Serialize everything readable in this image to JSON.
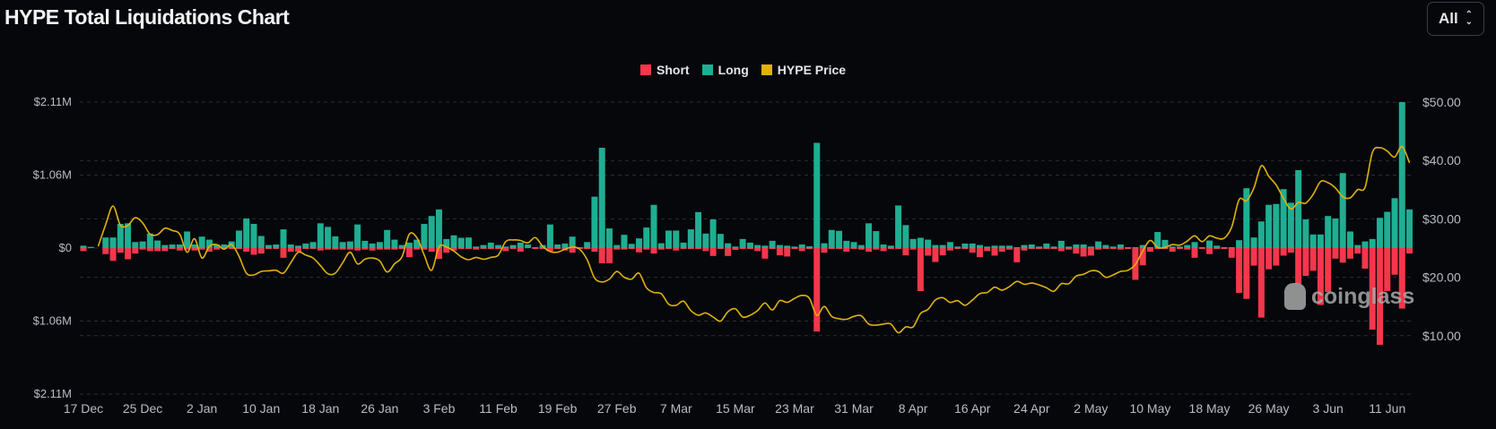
{
  "title": "HYPE Total Liquidations Chart",
  "range_select": {
    "value": "All"
  },
  "watermark": "coinglass",
  "colors": {
    "short": "#f5364b",
    "long": "#1fae92",
    "price": "#e0b20c",
    "background": "#05070b"
  },
  "chart_data": {
    "type": "bar",
    "title": "HYPE Total Liquidations Chart",
    "legend": {
      "placement": "top-center",
      "entries": [
        "Short",
        "Long",
        "HYPE Price"
      ]
    },
    "grid": true,
    "y_left": {
      "ticks": [
        "$2.11M",
        "$1.06M",
        "$0",
        "$1.06M",
        "$2.11M"
      ],
      "range_musd": [
        -2.11,
        2.11
      ]
    },
    "y_right": {
      "ticks": [
        "$50.00",
        "$40.00",
        "$30.00",
        "$20.00",
        "$10.00"
      ],
      "range": [
        0,
        50
      ]
    },
    "x_ticks": [
      "17 Dec",
      "25 Dec",
      "2 Jan",
      "10 Jan",
      "18 Jan",
      "26 Jan",
      "3 Feb",
      "11 Feb",
      "19 Feb",
      "27 Feb",
      "7 Mar",
      "15 Mar",
      "23 Mar",
      "31 Mar",
      "8 Apr",
      "16 Apr",
      "24 Apr",
      "2 May",
      "10 May",
      "18 May",
      "26 May",
      "3 Jun",
      "11 Jun"
    ],
    "categories": [
      "17 Dec",
      "18 Dec",
      "19 Dec",
      "20 Dec",
      "21 Dec",
      "22 Dec",
      "23 Dec",
      "24 Dec",
      "25 Dec",
      "26 Dec",
      "27 Dec",
      "28 Dec",
      "29 Dec",
      "30 Dec",
      "31 Dec",
      "1 Jan",
      "2 Jan",
      "3 Jan",
      "4 Jan",
      "5 Jan",
      "6 Jan",
      "7 Jan",
      "8 Jan",
      "9 Jan",
      "10 Jan",
      "11 Jan",
      "12 Jan",
      "13 Jan",
      "14 Jan",
      "15 Jan",
      "16 Jan",
      "17 Jan",
      "18 Jan",
      "19 Jan",
      "20 Jan",
      "21 Jan",
      "22 Jan",
      "23 Jan",
      "24 Jan",
      "25 Jan",
      "26 Jan",
      "27 Jan",
      "28 Jan",
      "29 Jan",
      "30 Jan",
      "31 Jan",
      "1 Feb",
      "2 Feb",
      "3 Feb",
      "4 Feb",
      "5 Feb",
      "6 Feb",
      "7 Feb",
      "8 Feb",
      "9 Feb",
      "10 Feb",
      "11 Feb",
      "12 Feb",
      "13 Feb",
      "14 Feb",
      "15 Feb",
      "16 Feb",
      "17 Feb",
      "18 Feb",
      "19 Feb",
      "20 Feb",
      "21 Feb",
      "22 Feb",
      "23 Feb",
      "24 Feb",
      "25 Feb",
      "26 Feb",
      "27 Feb",
      "28 Feb",
      "1 Mar",
      "2 Mar",
      "3 Mar",
      "4 Mar",
      "5 Mar",
      "6 Mar",
      "7 Mar",
      "8 Mar",
      "9 Mar",
      "10 Mar",
      "11 Mar",
      "12 Mar",
      "13 Mar",
      "14 Mar",
      "15 Mar",
      "16 Mar",
      "17 Mar",
      "18 Mar",
      "19 Mar",
      "20 Mar",
      "21 Mar",
      "22 Mar",
      "23 Mar",
      "24 Mar",
      "25 Mar",
      "26 Mar",
      "27 Mar",
      "28 Mar",
      "29 Mar",
      "30 Mar",
      "31 Mar",
      "1 Apr",
      "2 Apr",
      "3 Apr",
      "4 Apr",
      "5 Apr",
      "6 Apr",
      "7 Apr",
      "8 Apr",
      "9 Apr",
      "10 Apr",
      "11 Apr",
      "12 Apr",
      "13 Apr",
      "14 Apr",
      "15 Apr",
      "16 Apr",
      "17 Apr",
      "18 Apr",
      "19 Apr",
      "20 Apr",
      "21 Apr",
      "22 Apr",
      "23 Apr",
      "24 Apr",
      "25 Apr",
      "26 Apr",
      "27 Apr",
      "28 Apr",
      "29 Apr",
      "30 Apr",
      "1 May",
      "2 May",
      "3 May",
      "4 May",
      "5 May",
      "6 May",
      "7 May",
      "8 May",
      "9 May",
      "10 May",
      "11 May",
      "12 May",
      "13 May",
      "14 May",
      "15 May",
      "16 May",
      "17 May",
      "18 May",
      "19 May",
      "20 May",
      "21 May",
      "22 May",
      "23 May",
      "24 May",
      "25 May",
      "26 May",
      "27 May",
      "28 May",
      "29 May",
      "30 May",
      "31 May",
      "1 Jun",
      "2 Jun",
      "3 Jun",
      "4 Jun",
      "5 Jun",
      "6 Jun",
      "7 Jun",
      "8 Jun",
      "9 Jun",
      "10 Jun",
      "11 Jun",
      "12 Jun",
      "13 Jun",
      "14 Jun"
    ],
    "series": [
      {
        "name": "Short",
        "unit": "USD millions",
        "values": [
          0.044,
          0,
          0,
          0.087,
          0.184,
          0.066,
          0.162,
          0.079,
          0.022,
          0.044,
          0.044,
          0.044,
          0.013,
          0.035,
          0.022,
          0.035,
          0.022,
          0.052,
          0.022,
          0.013,
          0.013,
          0.013,
          0.052,
          0.096,
          0.079,
          0.013,
          0.013,
          0.14,
          0.052,
          0.052,
          0.013,
          0.013,
          0.035,
          0.022,
          0.022,
          0.022,
          0.022,
          0.035,
          0.022,
          0.035,
          0.022,
          0.022,
          0.022,
          0.013,
          0.131,
          0.022,
          0.022,
          0.052,
          0.157,
          0.066,
          0.035,
          0.013,
          0.013,
          0.022,
          0.013,
          0.013,
          0.013,
          0.044,
          0.013,
          0.052,
          0,
          0.013,
          0.013,
          0.044,
          0.013,
          0.035,
          0.066,
          0.013,
          0.013,
          0.052,
          0.219,
          0.219,
          0.022,
          0.022,
          0.013,
          0.061,
          0.022,
          0.079,
          0.022,
          0.013,
          0.035,
          0.013,
          0.013,
          0.013,
          0.044,
          0.114,
          0.013,
          0.114,
          0.026,
          0.013,
          0.013,
          0.044,
          0.153,
          0.013,
          0.105,
          0.122,
          0.013,
          0.044,
          0.013,
          1.206,
          0.066,
          0.013,
          0.013,
          0.052,
          0.013,
          0.022,
          0.052,
          0.022,
          0.044,
          0.013,
          0.013,
          0.105,
          0.022,
          0.621,
          0.109,
          0.201,
          0.105,
          0.035,
          0.013,
          0.013,
          0.066,
          0.131,
          0.044,
          0.109,
          0.052,
          0.022,
          0.205,
          0.035,
          0.013,
          0.013,
          0.013,
          0.013,
          0.044,
          0.022,
          0.079,
          0.122,
          0.109,
          0.022,
          0.013,
          0.013,
          0.022,
          0.013,
          0.459,
          0.249,
          0.052,
          0.013,
          0.013,
          0.052,
          0.013,
          0.022,
          0.14,
          0.013,
          0.087,
          0.013,
          0.013,
          0.14,
          0.647,
          0.734,
          0.253,
          1.005,
          0.306,
          0.253,
          0.109,
          0.066,
          0.516,
          0.402,
          0.328,
          0.822,
          0.634,
          0.153,
          0.21,
          0.153,
          0.079,
          0.297,
          1.18,
          1.398,
          0.621,
          0.385,
          0.874,
          0.079
        ]
      },
      {
        "name": "Long",
        "unit": "USD millions",
        "values": [
          0.035,
          0.017,
          0,
          0.153,
          0.153,
          0.35,
          0.358,
          0.087,
          0.096,
          0.21,
          0.109,
          0.044,
          0.052,
          0.052,
          0.24,
          0.052,
          0.166,
          0.122,
          0.052,
          0.052,
          0.096,
          0.253,
          0.428,
          0.35,
          0.175,
          0.044,
          0.052,
          0.271,
          0.052,
          0.035,
          0.066,
          0.087,
          0.358,
          0.306,
          0.17,
          0.087,
          0.096,
          0.341,
          0.105,
          0.066,
          0.087,
          0.262,
          0.122,
          0.044,
          0.079,
          0.122,
          0.35,
          0.463,
          0.559,
          0.131,
          0.184,
          0.149,
          0.153,
          0.022,
          0.044,
          0.079,
          0.044,
          0.022,
          0.044,
          0.079,
          0.052,
          0.013,
          0.044,
          0.341,
          0.052,
          0.066,
          0.166,
          0.013,
          0.087,
          0.743,
          1.45,
          0.284,
          0.044,
          0.192,
          0.061,
          0.14,
          0.297,
          0.625,
          0.07,
          0.253,
          0.253,
          0.079,
          0.271,
          0.52,
          0.21,
          0.415,
          0.205,
          0.07,
          0.022,
          0.131,
          0.079,
          0.044,
          0.035,
          0.105,
          0.044,
          0.035,
          0.022,
          0.052,
          0.026,
          1.521,
          0.07,
          0.262,
          0.249,
          0.105,
          0.087,
          0.044,
          0.358,
          0.245,
          0.052,
          0.035,
          0.616,
          0.332,
          0.131,
          0.149,
          0.122,
          0.044,
          0.044,
          0.087,
          0.022,
          0.066,
          0.066,
          0.044,
          0.022,
          0.035,
          0.035,
          0.035,
          0.013,
          0.044,
          0.052,
          0.022,
          0.066,
          0.022,
          0.105,
          0.022,
          0.052,
          0.052,
          0.022,
          0.096,
          0.044,
          0.022,
          0.052,
          0.013,
          0.013,
          0.044,
          0.013,
          0.232,
          0.118,
          0.022,
          0.022,
          0.044,
          0.087,
          0.013,
          0.109,
          0.035,
          0.013,
          0.013,
          0.114,
          0.865,
          0.153,
          0.385,
          0.625,
          0.638,
          0.852,
          0.656,
          1.127,
          0.415,
          0.197,
          0.197,
          0.463,
          0.428,
          1.084,
          0.24,
          0.044,
          0.096,
          0.131,
          0.437,
          0.524,
          0.721,
          2.11,
          0.559
        ]
      },
      {
        "name": "HYPE Price",
        "unit": "USD",
        "axis": "right",
        "values": [
          null,
          null,
          25.3,
          29.0,
          32.2,
          28.9,
          28.9,
          30.2,
          29.3,
          27.4,
          27.3,
          28.4,
          28.0,
          27.4,
          24.3,
          26.6,
          23.3,
          25.3,
          25.6,
          24.8,
          25.6,
          23.6,
          20.7,
          20.4,
          21.0,
          21.1,
          21.2,
          20.7,
          22.5,
          24.3,
          23.8,
          23.3,
          22.0,
          20.6,
          20.7,
          22.5,
          24.3,
          22.3,
          23.1,
          23.3,
          22.8,
          20.9,
          22.3,
          23.5,
          27.4,
          26.8,
          23.8,
          21.2,
          25.2,
          25.2,
          24.5,
          23.5,
          23.0,
          23.4,
          23.1,
          23.4,
          23.8,
          26.1,
          26.4,
          26.3,
          25.9,
          26.8,
          25.3,
          24.4,
          24.3,
          24.8,
          25.2,
          24.8,
          23.0,
          19.9,
          19.2,
          19.7,
          21.0,
          20.0,
          19.7,
          20.7,
          18.2,
          17.4,
          17.2,
          15.4,
          15.2,
          15.9,
          14.3,
          13.5,
          13.9,
          13.2,
          12.5,
          14.1,
          14.6,
          13.2,
          13.5,
          14.3,
          15.6,
          14.4,
          16.0,
          15.7,
          16.4,
          16.9,
          16.4,
          13.5,
          15.0,
          13.3,
          12.9,
          12.8,
          13.3,
          13.4,
          12.0,
          11.8,
          12.0,
          12.0,
          10.5,
          11.5,
          11.5,
          13.8,
          14.5,
          16.1,
          16.5,
          15.7,
          16.0,
          15.2,
          16.1,
          17.2,
          17.4,
          18.3,
          17.8,
          18.4,
          19.3,
          18.8,
          19.0,
          18.7,
          18.2,
          17.6,
          18.9,
          18.9,
          20.2,
          20.5,
          21.1,
          21.0,
          20.0,
          20.4,
          21.0,
          21.2,
          22.2,
          24.5,
          26.3,
          25.1,
          25.1,
          25.6,
          25.5,
          26.2,
          27.1,
          26.1,
          27.1,
          26.7,
          26.7,
          28.6,
          33.3,
          33.1,
          35.3,
          39.1,
          37.3,
          35.8,
          33.5,
          31.7,
          32.8,
          32.7,
          34.2,
          36.4,
          36.2,
          35.3,
          33.8,
          33.6,
          35.0,
          35.4,
          41.4,
          42.2,
          41.6,
          40.6,
          42.4,
          39.6
        ]
      }
    ]
  }
}
